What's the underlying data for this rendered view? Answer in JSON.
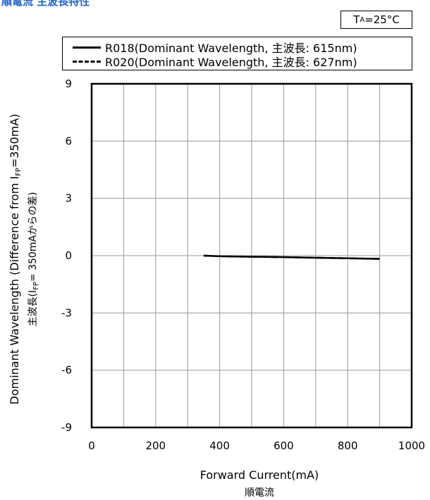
{
  "title_jp": "順電流 主波長特性",
  "condition": {
    "prefix": "T",
    "sub": "A",
    "suffix": "=25°C"
  },
  "legend": [
    {
      "style": "solid",
      "text": "R018(Dominant Wavelength, 主波長: 615nm)"
    },
    {
      "style": "dashed",
      "text": "R020(Dominant Wavelength, 主波長: 627nm)"
    }
  ],
  "chart_data": {
    "type": "line",
    "xlabel": "Forward Current(mA)",
    "xlabel_jp": "順電流",
    "ylabel": "Dominant Wavelength (Difference from I",
    "ylabel_sub": "FP",
    "ylabel_end": "=350mA)",
    "ylabel_jp": "主波長(I",
    "ylabel_jp_sub": "FP",
    "ylabel_jp_end": "= 350mAからの差)",
    "xlim": [
      0,
      1000
    ],
    "ylim": [
      -9,
      9
    ],
    "x_ticks": [
      0,
      200,
      400,
      600,
      800,
      1000
    ],
    "y_ticks": [
      9,
      6,
      3,
      0,
      -3,
      -6,
      -9
    ],
    "x_grid": [
      100,
      200,
      300,
      400,
      500,
      600,
      700,
      800,
      900
    ],
    "y_grid": [
      -6,
      -3,
      0,
      3,
      6
    ],
    "grid": true,
    "series": [
      {
        "name": "R018(Dominant Wavelength, 主波長: 615nm)",
        "style": "solid",
        "x": [
          350,
          400,
          500,
          600,
          700,
          800,
          900
        ],
        "y": [
          0,
          -0.03,
          -0.06,
          -0.08,
          -0.11,
          -0.14,
          -0.17
        ]
      },
      {
        "name": "R020(Dominant Wavelength, 主波長: 627nm)",
        "style": "dashed",
        "x": [
          350,
          400,
          500,
          600,
          700,
          800,
          900
        ],
        "y": [
          0,
          -0.03,
          -0.06,
          -0.08,
          -0.11,
          -0.14,
          -0.17
        ]
      }
    ]
  }
}
